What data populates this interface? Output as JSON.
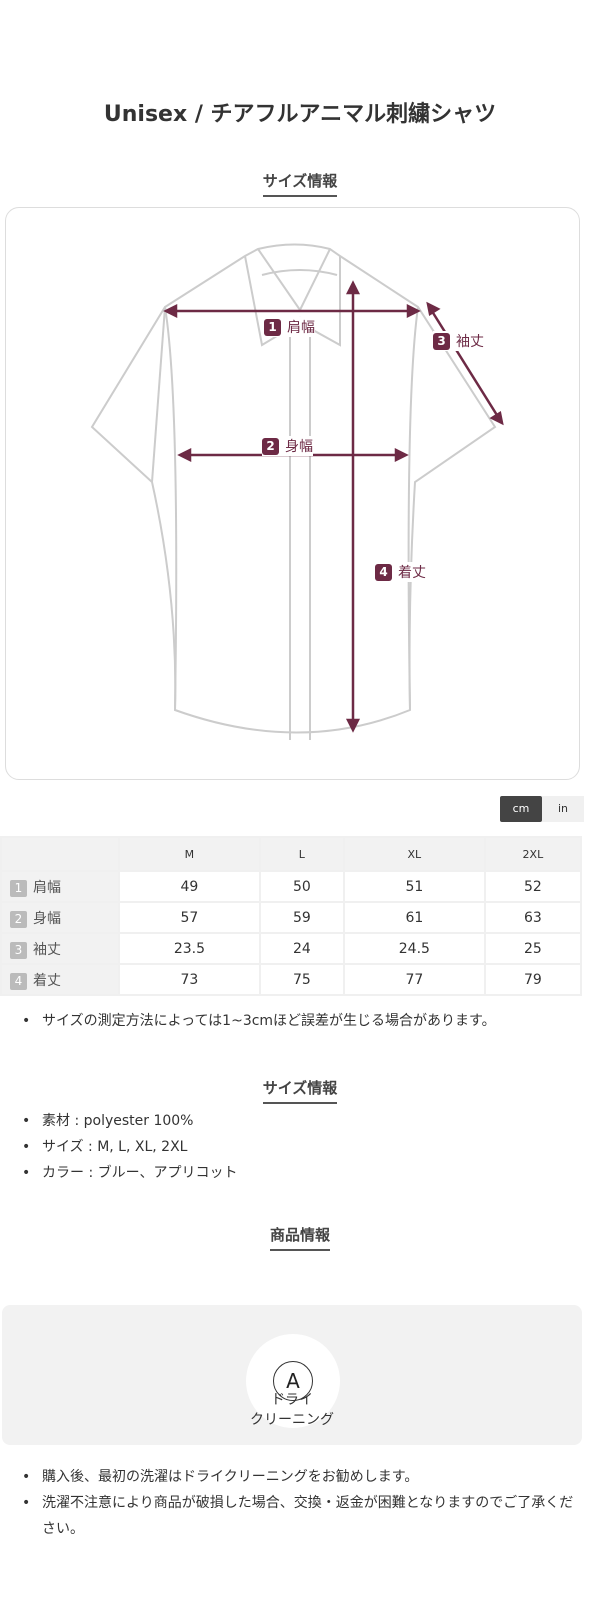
{
  "product_title": "Unisex / チアフルアニマル刺繍シャツ",
  "size_section_title": "サイズ情報",
  "diagram": {
    "labels": [
      {
        "num": "1",
        "text": "肩幅"
      },
      {
        "num": "2",
        "text": "身幅"
      },
      {
        "num": "3",
        "text": "袖丈"
      },
      {
        "num": "4",
        "text": "着丈"
      }
    ],
    "accent_color": "#6d2a45"
  },
  "units": {
    "cm": "cm",
    "in": "in",
    "selected": "cm"
  },
  "size_table": {
    "columns": [
      "M",
      "L",
      "XL",
      "2XL"
    ],
    "rows": [
      {
        "num": "1",
        "label": "肩幅",
        "values": [
          "49",
          "50",
          "51",
          "52"
        ]
      },
      {
        "num": "2",
        "label": "身幅",
        "values": [
          "57",
          "59",
          "61",
          "63"
        ]
      },
      {
        "num": "3",
        "label": "袖丈",
        "values": [
          "23.5",
          "24",
          "24.5",
          "25"
        ]
      },
      {
        "num": "4",
        "label": "着丈",
        "values": [
          "73",
          "75",
          "77",
          "79"
        ]
      }
    ]
  },
  "size_note": "サイズの測定方法によっては1~3cmほど誤差が生じる場合があります。",
  "info_section_title": "サイズ情報",
  "info_items": [
    "素材 : polyester 100%",
    "サイズ : M, L, XL, 2XL",
    "カラー : ブルー、アプリコット"
  ],
  "product_section_title": "商品情報",
  "care": {
    "icon_letter": "A",
    "label_line1": "ドライ",
    "label_line2": "クリーニング"
  },
  "care_notes": [
    "購入後、最初の洗濯はドライクリーニングをお勧めします。",
    "洗濯不注意により商品が破損した場合、交換・返金が困難となりますのでご了承ください。"
  ]
}
